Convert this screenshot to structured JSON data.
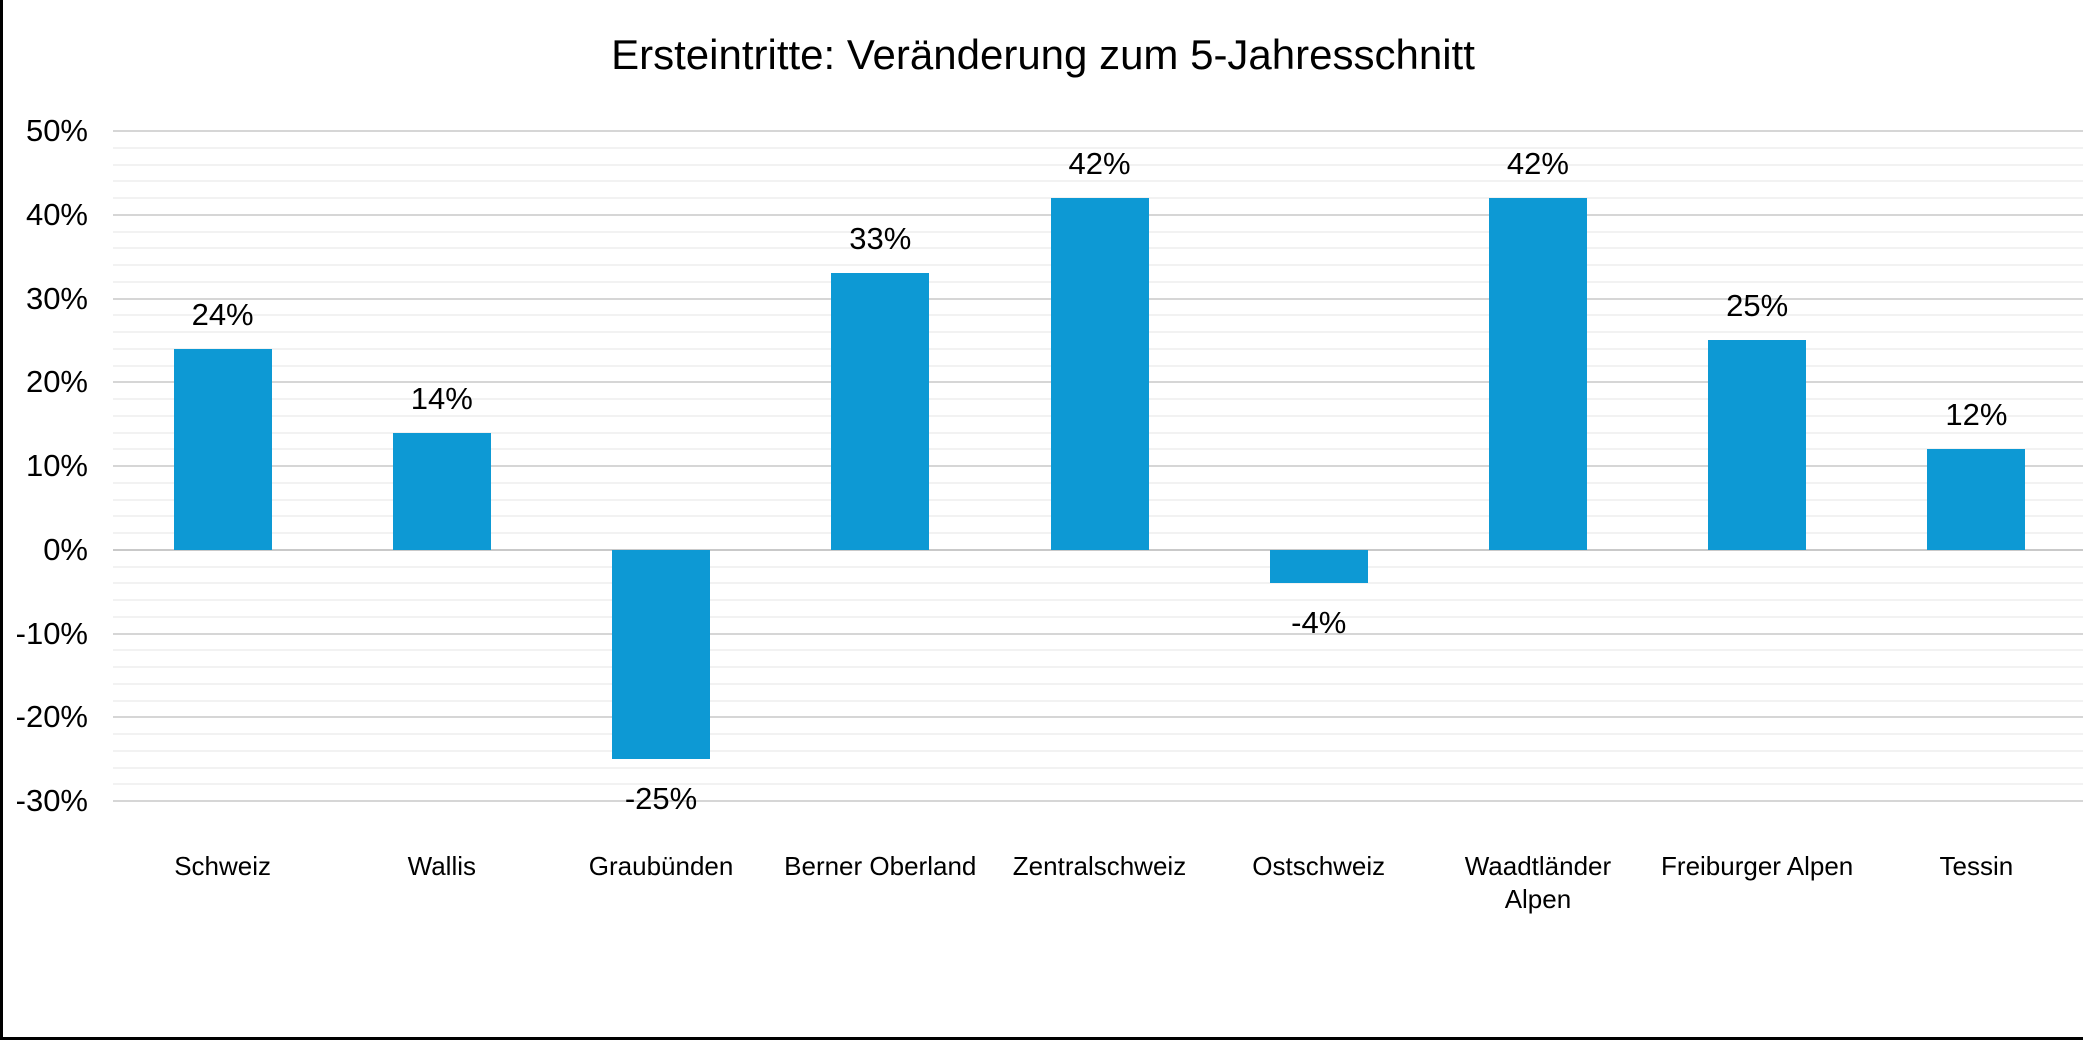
{
  "page": {
    "background_color": "#ffffff",
    "frame_border_color": "#000000"
  },
  "chart_data": {
    "type": "bar",
    "title": "Ersteintritte: Veränderung zum 5-Jahresschnitt",
    "categories": [
      "Schweiz",
      "Wallis",
      "Graubünden",
      "Berner Oberland",
      "Zentralschweiz",
      "Ostschweiz",
      "Waadtländer Alpen",
      "Freiburger Alpen",
      "Tessin"
    ],
    "values": [
      24,
      14,
      -25,
      33,
      42,
      -4,
      42,
      25,
      12
    ],
    "value_labels": [
      "24%",
      "14%",
      "-25%",
      "33%",
      "42%",
      "-4%",
      "42%",
      "25%",
      "12%"
    ],
    "xlabel": "",
    "ylabel": "",
    "y_axis": {
      "min": -30,
      "max": 50,
      "major_step": 10,
      "minor_step": 2,
      "tick_values": [
        50,
        40,
        30,
        20,
        10,
        0,
        -10,
        -20,
        -30
      ],
      "tick_labels": [
        "50%",
        "40%",
        "30%",
        "20%",
        "10%",
        "0%",
        "-10%",
        "-20%",
        "-30%"
      ]
    },
    "grid": "on",
    "legend_position": "none",
    "bar_color": "#0D99D4",
    "gridline_major_color": "#D6D6D6",
    "gridline_minor_color": "#F2F2F2",
    "zero_line_color": "#C9C9C9",
    "label_color": "#000000"
  }
}
